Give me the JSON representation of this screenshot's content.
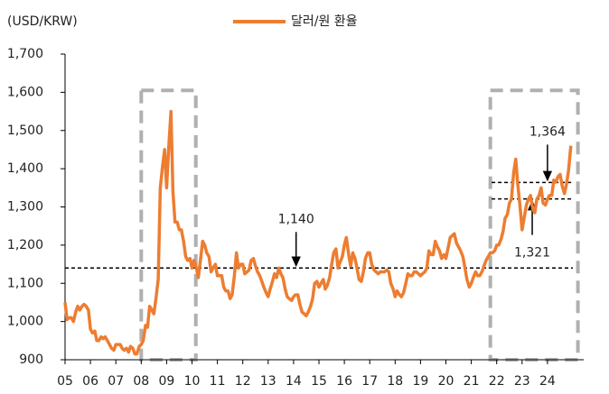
{
  "chart_data": {
    "type": "line",
    "ylabel": "(USD/KRW)",
    "xlim": [
      2005,
      2025
    ],
    "ylim": [
      900,
      1700
    ],
    "yticks": [
      {
        "value": 900,
        "label": "900"
      },
      {
        "value": 1000,
        "label": "1,000"
      },
      {
        "value": 1100,
        "label": "1,100"
      },
      {
        "value": 1200,
        "label": "1,200"
      },
      {
        "value": 1300,
        "label": "1,300"
      },
      {
        "value": 1400,
        "label": "1,400"
      },
      {
        "value": 1500,
        "label": "1,500"
      },
      {
        "value": 1600,
        "label": "1,600"
      },
      {
        "value": 1700,
        "label": "1,700"
      }
    ],
    "xticks": [
      {
        "value": 2005,
        "label": "05"
      },
      {
        "value": 2006,
        "label": "06"
      },
      {
        "value": 2007,
        "label": "07"
      },
      {
        "value": 2008,
        "label": "08"
      },
      {
        "value": 2009,
        "label": "09"
      },
      {
        "value": 2010,
        "label": "10"
      },
      {
        "value": 2011,
        "label": "11"
      },
      {
        "value": 2012,
        "label": "12"
      },
      {
        "value": 2013,
        "label": "13"
      },
      {
        "value": 2014,
        "label": "14"
      },
      {
        "value": 2015,
        "label": "15"
      },
      {
        "value": 2016,
        "label": "16"
      },
      {
        "value": 2017,
        "label": "17"
      },
      {
        "value": 2018,
        "label": "18"
      },
      {
        "value": 2019,
        "label": "19"
      },
      {
        "value": 2020,
        "label": "20"
      },
      {
        "value": 2021,
        "label": "21"
      },
      {
        "value": 2022,
        "label": "22"
      },
      {
        "value": 2023,
        "label": "23"
      },
      {
        "value": 2024,
        "label": "24"
      }
    ],
    "legend": "top",
    "reference_lines": [
      {
        "value": 1140,
        "label": "1,140",
        "xlim": [
          2005,
          2025
        ]
      },
      {
        "value": 1364,
        "label": "1,364",
        "xlim": [
          2021.8,
          2025
        ]
      },
      {
        "value": 1321,
        "label": "1,321",
        "xlim": [
          2021.8,
          2025
        ]
      }
    ],
    "highlights": [
      {
        "xlim": [
          2008,
          2010.15
        ],
        "ylim": [
          900,
          1605
        ]
      },
      {
        "xlim": [
          2021.75,
          2025.2
        ],
        "ylim": [
          900,
          1605
        ]
      }
    ],
    "x": [
      2005,
      2005.08,
      2005.17,
      2005.25,
      2005.33,
      2005.42,
      2005.5,
      2005.58,
      2005.67,
      2005.75,
      2005.83,
      2005.92,
      2006,
      2006.08,
      2006.17,
      2006.25,
      2006.33,
      2006.42,
      2006.5,
      2006.58,
      2006.67,
      2006.75,
      2006.83,
      2006.92,
      2007,
      2007.08,
      2007.17,
      2007.25,
      2007.33,
      2007.42,
      2007.5,
      2007.58,
      2007.67,
      2007.75,
      2007.83,
      2007.92,
      2008,
      2008.08,
      2008.17,
      2008.25,
      2008.33,
      2008.42,
      2008.5,
      2008.58,
      2008.67,
      2008.75,
      2008.83,
      2008.92,
      2009,
      2009.08,
      2009.17,
      2009.25,
      2009.33,
      2009.42,
      2009.5,
      2009.58,
      2009.67,
      2009.75,
      2009.83,
      2009.92,
      2010,
      2010.08,
      2010.17,
      2010.25,
      2010.33,
      2010.42,
      2010.5,
      2010.58,
      2010.67,
      2010.75,
      2010.83,
      2010.92,
      2011,
      2011.08,
      2011.17,
      2011.25,
      2011.33,
      2011.42,
      2011.5,
      2011.58,
      2011.67,
      2011.75,
      2011.83,
      2011.92,
      2012,
      2012.08,
      2012.17,
      2012.25,
      2012.33,
      2012.42,
      2012.5,
      2012.58,
      2012.67,
      2012.75,
      2012.83,
      2012.92,
      2013,
      2013.08,
      2013.17,
      2013.25,
      2013.33,
      2013.42,
      2013.5,
      2013.58,
      2013.67,
      2013.75,
      2013.83,
      2013.92,
      2014,
      2014.08,
      2014.17,
      2014.25,
      2014.33,
      2014.42,
      2014.5,
      2014.58,
      2014.67,
      2014.75,
      2014.83,
      2014.92,
      2015,
      2015.08,
      2015.17,
      2015.25,
      2015.33,
      2015.42,
      2015.5,
      2015.58,
      2015.67,
      2015.75,
      2015.83,
      2015.92,
      2016,
      2016.08,
      2016.17,
      2016.25,
      2016.33,
      2016.42,
      2016.5,
      2016.58,
      2016.67,
      2016.75,
      2016.83,
      2016.92,
      2017,
      2017.08,
      2017.17,
      2017.25,
      2017.33,
      2017.42,
      2017.5,
      2017.58,
      2017.67,
      2017.75,
      2017.83,
      2017.92,
      2018,
      2018.08,
      2018.17,
      2018.25,
      2018.33,
      2018.42,
      2018.5,
      2018.58,
      2018.67,
      2018.75,
      2018.83,
      2018.92,
      2019,
      2019.08,
      2019.17,
      2019.25,
      2019.33,
      2019.42,
      2019.5,
      2019.58,
      2019.67,
      2019.75,
      2019.83,
      2019.92,
      2020,
      2020.08,
      2020.17,
      2020.25,
      2020.33,
      2020.42,
      2020.5,
      2020.58,
      2020.67,
      2020.75,
      2020.83,
      2020.92,
      2021,
      2021.08,
      2021.17,
      2021.25,
      2021.33,
      2021.42,
      2021.5,
      2021.58,
      2021.67,
      2021.75,
      2021.83,
      2021.92,
      2022,
      2022.08,
      2022.17,
      2022.25,
      2022.33,
      2022.42,
      2022.5,
      2022.58,
      2022.67,
      2022.75,
      2022.83,
      2022.92,
      2023,
      2023.08,
      2023.17,
      2023.25,
      2023.33,
      2023.42,
      2023.5,
      2023.58,
      2023.67,
      2023.75,
      2023.83,
      2023.92,
      2024,
      2024.08,
      2024.17,
      2024.25,
      2024.33,
      2024.42,
      2024.5,
      2024.58,
      2024.67,
      2024.75,
      2024.83,
      2024.92
    ],
    "series": [
      {
        "name": "달러/원 환율",
        "color": "#ED7D31",
        "values": [
          1050,
          1005,
          1010,
          1010,
          1000,
          1025,
          1040,
          1030,
          1040,
          1045,
          1040,
          1030,
          980,
          970,
          975,
          950,
          950,
          960,
          955,
          960,
          950,
          940,
          930,
          925,
          940,
          940,
          940,
          930,
          925,
          930,
          920,
          935,
          930,
          915,
          915,
          935,
          940,
          950,
          990,
          985,
          1040,
          1030,
          1020,
          1060,
          1110,
          1350,
          1400,
          1450,
          1350,
          1450,
          1550,
          1340,
          1260,
          1260,
          1240,
          1240,
          1210,
          1170,
          1160,
          1165,
          1140,
          1160,
          1140,
          1115,
          1160,
          1210,
          1200,
          1180,
          1170,
          1130,
          1140,
          1150,
          1120,
          1120,
          1120,
          1090,
          1080,
          1080,
          1060,
          1070,
          1120,
          1180,
          1140,
          1150,
          1150,
          1125,
          1130,
          1135,
          1160,
          1165,
          1145,
          1130,
          1120,
          1105,
          1090,
          1075,
          1065,
          1085,
          1105,
          1125,
          1115,
          1140,
          1125,
          1115,
          1085,
          1065,
          1060,
          1055,
          1065,
          1070,
          1070,
          1045,
          1025,
          1020,
          1015,
          1025,
          1040,
          1060,
          1100,
          1105,
          1090,
          1100,
          1110,
          1085,
          1095,
          1115,
          1150,
          1180,
          1190,
          1140,
          1155,
          1170,
          1200,
          1220,
          1175,
          1145,
          1180,
          1165,
          1140,
          1110,
          1105,
          1130,
          1165,
          1180,
          1180,
          1150,
          1135,
          1130,
          1125,
          1130,
          1130,
          1130,
          1135,
          1130,
          1100,
          1085,
          1065,
          1080,
          1070,
          1065,
          1075,
          1100,
          1125,
          1120,
          1120,
          1130,
          1130,
          1125,
          1120,
          1125,
          1130,
          1140,
          1185,
          1175,
          1175,
          1210,
          1195,
          1185,
          1165,
          1175,
          1165,
          1190,
          1220,
          1225,
          1230,
          1205,
          1195,
          1185,
          1170,
          1140,
          1110,
          1090,
          1100,
          1115,
          1130,
          1120,
          1120,
          1130,
          1145,
          1160,
          1170,
          1180,
          1180,
          1185,
          1200,
          1200,
          1215,
          1235,
          1270,
          1280,
          1310,
          1320,
          1390,
          1425,
          1360,
          1300,
          1240,
          1270,
          1305,
          1320,
          1330,
          1295,
          1285,
          1320,
          1330,
          1350,
          1310,
          1305,
          1320,
          1330,
          1330,
          1370,
          1365,
          1380,
          1385,
          1355,
          1335,
          1360,
          1395,
          1460
        ]
      }
    ]
  }
}
